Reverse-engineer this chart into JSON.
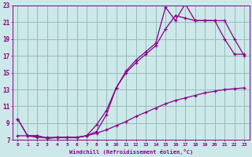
{
  "xlabel": "Windchill (Refroidissement éolien,°C)",
  "bg_color": "#cce8e8",
  "line_color": "#880088",
  "grid_color": "#99bbbb",
  "xlim": [
    -0.5,
    23.5
  ],
  "ylim": [
    7,
    23
  ],
  "xticks": [
    0,
    1,
    2,
    3,
    4,
    5,
    6,
    7,
    8,
    9,
    10,
    11,
    12,
    13,
    14,
    15,
    16,
    17,
    18,
    19,
    20,
    21,
    22,
    23
  ],
  "yticks": [
    7,
    9,
    11,
    13,
    15,
    17,
    19,
    21,
    23
  ],
  "line1_x": [
    0,
    1,
    2,
    3,
    4,
    5,
    6,
    7,
    8,
    9,
    10,
    11,
    12,
    13,
    14,
    15,
    16,
    17,
    18,
    19,
    20,
    21,
    22,
    23
  ],
  "line1_y": [
    9.5,
    7.5,
    7.5,
    7.2,
    7.3,
    7.3,
    7.3,
    7.5,
    8.8,
    10.5,
    13.2,
    15.2,
    16.5,
    17.5,
    18.5,
    22.8,
    21.2,
    23.2,
    21.2,
    21.2,
    21.2,
    19.0,
    17.2,
    17.2
  ],
  "line2_x": [
    0,
    1,
    2,
    3,
    4,
    5,
    6,
    7,
    8,
    9,
    10,
    11,
    12,
    13,
    14,
    15,
    16,
    17,
    18,
    19,
    20,
    21,
    22,
    23
  ],
  "line2_y": [
    9.5,
    7.5,
    7.5,
    7.2,
    7.3,
    7.3,
    7.3,
    7.5,
    8.0,
    10.0,
    13.2,
    15.0,
    16.2,
    17.2,
    18.2,
    20.2,
    21.8,
    21.5,
    21.2,
    21.2,
    21.2,
    21.2,
    19.0,
    17.0
  ],
  "line3_x": [
    0,
    1,
    2,
    3,
    4,
    5,
    6,
    7,
    8,
    9,
    10,
    11,
    12,
    13,
    14,
    15,
    16,
    17,
    18,
    19,
    20,
    21,
    22,
    23
  ],
  "line3_y": [
    7.5,
    7.5,
    7.3,
    7.3,
    7.3,
    7.3,
    7.3,
    7.5,
    7.8,
    8.2,
    8.7,
    9.2,
    9.8,
    10.3,
    10.8,
    11.3,
    11.7,
    12.0,
    12.3,
    12.6,
    12.8,
    13.0,
    13.1,
    13.2
  ]
}
